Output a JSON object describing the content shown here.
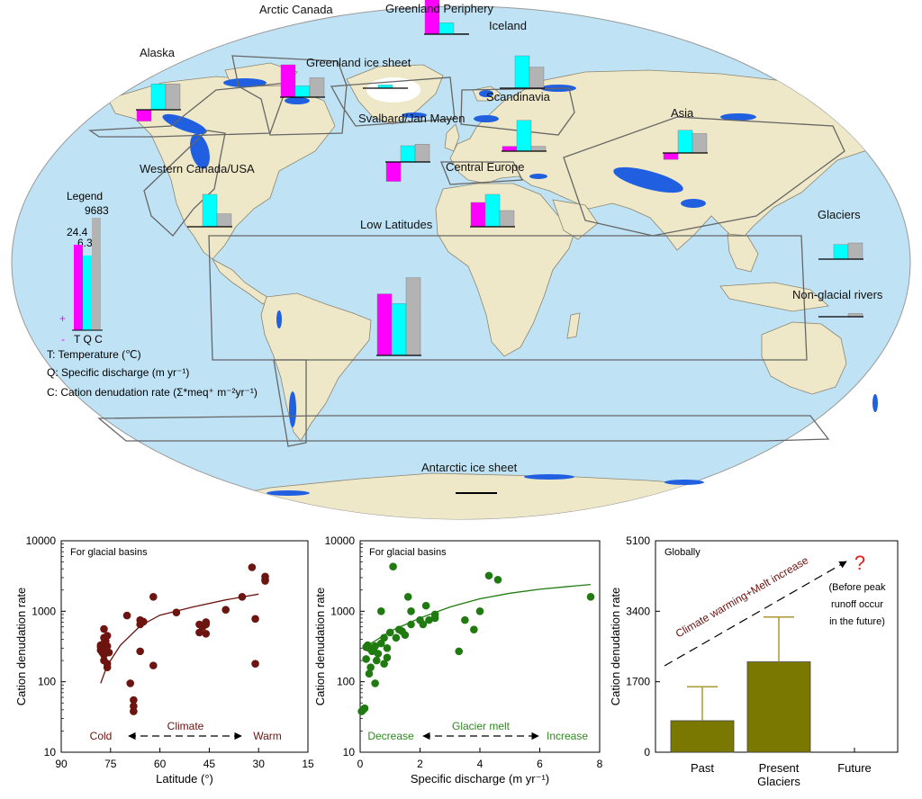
{
  "colors": {
    "temperature": "#ff00ff",
    "discharge": "#00ffff",
    "cation": "#b3b3b3",
    "ocean": "#bfe3f5",
    "land": "#efe8c8",
    "glacier": "#1f5fe0",
    "latitude_points": "#6b1410",
    "discharge_points": "#1f7a10",
    "global_bars": "#7a7800",
    "question": "#e02020"
  },
  "map": {
    "legend": {
      "title": "Legend",
      "t_value": "24.4",
      "q_value": "6.39",
      "c_value": "9683",
      "plus": "+",
      "minus": "-",
      "axis_letters": "T Q C",
      "t_desc": "T: Temperature (℃)",
      "q_desc": "Q: Specific discharge (m yr⁻¹)",
      "c_desc": "C: Cation denudation rate (Σ*meq⁺ m⁻²yr⁻¹)"
    },
    "regions": [
      {
        "name": "Alaska",
        "t": -0.35,
        "q": 0.8,
        "c": 0.8
      },
      {
        "name": "Arctic Canada",
        "t": 1.0,
        "q": 0.35,
        "c": 0.6
      },
      {
        "name": "Greenland Periphery",
        "t": 1.35,
        "q": 0.35,
        "c": 0.02
      },
      {
        "name": "Iceland",
        "t": 0.0,
        "q": 1.0,
        "c": 0.65
      },
      {
        "name": "Greenland ice sheet",
        "t": 0.0,
        "q": 0.1,
        "c": 0.0
      },
      {
        "name": "Scandinavia",
        "t": 0.15,
        "q": 0.95,
        "c": 0.15
      },
      {
        "name": "Svalbard/Jan Mayen",
        "t": -0.6,
        "q": 0.5,
        "c": 0.55
      },
      {
        "name": "Asia",
        "t": -0.2,
        "q": 0.7,
        "c": 0.6
      },
      {
        "name": "Central Europe",
        "t": 0.75,
        "q": 1.0,
        "c": 0.5
      },
      {
        "name": "Western Canada/USA",
        "t": 0.0,
        "q": 1.0,
        "c": 0.4
      },
      {
        "name": "Low Latitudes",
        "t": 1.9,
        "q": 1.6,
        "c": 2.4
      },
      {
        "name": "Glaciers",
        "t": 0.0,
        "q": 0.45,
        "c": 0.5
      },
      {
        "name": "Non-glacial rivers",
        "t": 0.0,
        "q": 0.0,
        "c": 0.1
      },
      {
        "name": "Antarctic ice sheet",
        "t": 0.0,
        "q": 0.0,
        "c": 0.0
      }
    ]
  },
  "chart_data": [
    {
      "type": "scatter",
      "title": "For glacial basins",
      "xlabel": "Latitude (°)",
      "ylabel": "Cation denudation rate",
      "xlim": [
        90,
        15
      ],
      "ylim": [
        10,
        10000
      ],
      "yscale": "log",
      "xticks": [
        "90",
        "75",
        "60",
        "45",
        "30",
        "15"
      ],
      "yticks": [
        "10",
        "100",
        "1000",
        "10000"
      ],
      "annotation": {
        "left": "Cold",
        "middle": "Climate",
        "right": "Warm"
      },
      "trend": [
        [
          78,
          95
        ],
        [
          76,
          170
        ],
        [
          72,
          330
        ],
        [
          66,
          620
        ],
        [
          60,
          880
        ],
        [
          50,
          1150
        ],
        [
          40,
          1450
        ],
        [
          30,
          1750
        ]
      ],
      "points": [
        [
          78,
          330
        ],
        [
          78,
          310
        ],
        [
          78,
          280
        ],
        [
          77,
          350
        ],
        [
          77,
          420
        ],
        [
          77,
          240
        ],
        [
          77,
          200
        ],
        [
          76.5,
          380
        ],
        [
          76.5,
          290
        ],
        [
          76,
          450
        ],
        [
          76,
          320
        ],
        [
          75.5,
          260
        ],
        [
          76,
          160
        ],
        [
          76,
          180
        ],
        [
          77,
          560
        ],
        [
          77.5,
          260
        ],
        [
          70,
          870
        ],
        [
          69,
          95
        ],
        [
          68,
          55
        ],
        [
          68,
          45
        ],
        [
          68,
          38
        ],
        [
          66,
          270
        ],
        [
          66,
          650
        ],
        [
          66,
          750
        ],
        [
          65,
          710
        ],
        [
          62,
          1600
        ],
        [
          62,
          170
        ],
        [
          55,
          960
        ],
        [
          48,
          650
        ],
        [
          48,
          500
        ],
        [
          47,
          600
        ],
        [
          46,
          700
        ],
        [
          46,
          480
        ],
        [
          46,
          650
        ],
        [
          40,
          1050
        ],
        [
          35,
          1600
        ],
        [
          32,
          4200
        ],
        [
          31,
          180
        ],
        [
          31,
          780
        ],
        [
          28,
          3100
        ],
        [
          28,
          2800
        ],
        [
          28,
          2700
        ]
      ]
    },
    {
      "type": "scatter",
      "title": "For glacial basins",
      "xlabel": "Specific discharge (m yr⁻¹)",
      "ylabel": "Cation denudation rate",
      "xlim": [
        0,
        8
      ],
      "ylim": [
        10,
        10000
      ],
      "yscale": "log",
      "xticks": [
        "0",
        "2",
        "4",
        "6",
        "8"
      ],
      "yticks": [
        "10",
        "100",
        "1000",
        "10000"
      ],
      "annotation": {
        "left": "Decrease",
        "middle": "Glacier melt",
        "right": "Increase"
      },
      "trend": [
        [
          0.1,
          300
        ],
        [
          0.5,
          380
        ],
        [
          1,
          520
        ],
        [
          2,
          800
        ],
        [
          3,
          1150
        ],
        [
          4,
          1500
        ],
        [
          5,
          1800
        ],
        [
          6,
          2050
        ],
        [
          7,
          2250
        ],
        [
          7.7,
          2400
        ]
      ],
      "points": [
        [
          0.05,
          38
        ],
        [
          0.1,
          40
        ],
        [
          0.15,
          42
        ],
        [
          0.2,
          310
        ],
        [
          0.2,
          210
        ],
        [
          0.25,
          330
        ],
        [
          0.3,
          300
        ],
        [
          0.3,
          130
        ],
        [
          0.35,
          160
        ],
        [
          0.4,
          270
        ],
        [
          0.45,
          280
        ],
        [
          0.5,
          320
        ],
        [
          0.5,
          95
        ],
        [
          0.55,
          200
        ],
        [
          0.6,
          250
        ],
        [
          0.7,
          350
        ],
        [
          0.7,
          1000
        ],
        [
          0.8,
          180
        ],
        [
          0.8,
          420
        ],
        [
          0.9,
          220
        ],
        [
          0.9,
          300
        ],
        [
          1.0,
          500
        ],
        [
          1.1,
          4300
        ],
        [
          1.2,
          420
        ],
        [
          1.3,
          550
        ],
        [
          1.4,
          520
        ],
        [
          1.5,
          460
        ],
        [
          1.6,
          1600
        ],
        [
          1.7,
          1000
        ],
        [
          1.7,
          650
        ],
        [
          2.0,
          750
        ],
        [
          2.1,
          650
        ],
        [
          2.2,
          1200
        ],
        [
          2.3,
          750
        ],
        [
          2.5,
          900
        ],
        [
          2.5,
          800
        ],
        [
          3.3,
          270
        ],
        [
          3.5,
          750
        ],
        [
          3.8,
          550
        ],
        [
          4.0,
          1000
        ],
        [
          4.3,
          3200
        ],
        [
          4.6,
          2800
        ],
        [
          7.7,
          1600
        ]
      ]
    },
    {
      "type": "bar",
      "title": "Globally",
      "ylabel": "Cation denudation rate",
      "ylim": [
        0,
        5100
      ],
      "yticks": [
        "0",
        "1700",
        "3400",
        "5100"
      ],
      "categories": [
        "Past",
        "Present",
        "Future"
      ],
      "group_label": "Glaciers",
      "values": [
        760,
        2180,
        null
      ],
      "errors": [
        820,
        1080,
        null
      ],
      "arrow_label": "Climate warming+Melt increase",
      "question": "?",
      "note": [
        "(Before peak",
        "runoff occur",
        "in the future)"
      ]
    }
  ]
}
